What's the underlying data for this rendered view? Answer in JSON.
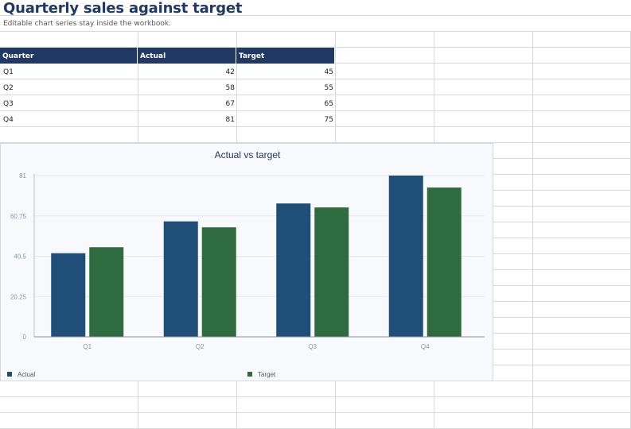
{
  "sheet": {
    "title": "Quarterly sales against target",
    "subtitle": "Editable chart series stay inside the workbook."
  },
  "table": {
    "headers": [
      "Quarter",
      "Actual",
      "Target"
    ],
    "rows": [
      [
        "Q1",
        "42",
        "45"
      ],
      [
        "Q2",
        "58",
        "55"
      ],
      [
        "Q3",
        "67",
        "65"
      ],
      [
        "Q4",
        "81",
        "75"
      ]
    ]
  },
  "colors": {
    "header_bg": "#1f3864",
    "actual": "#1f4e79",
    "target": "#2e6b3f"
  },
  "chart_data": {
    "type": "bar",
    "title": "Actual vs target",
    "categories": [
      "Q1",
      "Q2",
      "Q3",
      "Q4"
    ],
    "series": [
      {
        "name": "Actual",
        "values": [
          42,
          58,
          67,
          81
        ]
      },
      {
        "name": "Target",
        "values": [
          45,
          55,
          65,
          75
        ]
      }
    ],
    "ylim": [
      0,
      81
    ],
    "yticks": [
      "0",
      "20.25",
      "40.5",
      "60.75",
      "81"
    ],
    "grid": true,
    "legend": "bottom"
  }
}
